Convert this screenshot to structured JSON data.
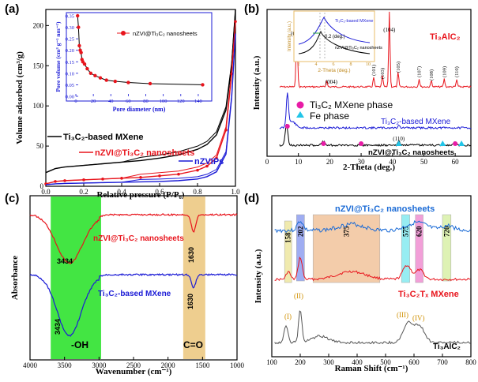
{
  "chart_data": [
    {
      "panel": "(a)",
      "type": "line",
      "xlabel": "Relative pressure (P/P₀)",
      "ylabel": "Volume adsorbed (cm³/g)",
      "xlim": [
        0,
        1.0
      ],
      "ylim": [
        0,
        220
      ],
      "xticks": [
        "0.0",
        "0.2",
        "0.4",
        "0.6",
        "0.8",
        "1.0"
      ],
      "yticks": [
        "0",
        "50",
        "100",
        "150",
        "200"
      ],
      "series": [
        {
          "name": "Ti₃C₂-based MXene",
          "color": "#000000",
          "x": [
            0,
            0.05,
            0.1,
            0.2,
            0.3,
            0.4,
            0.5,
            0.6,
            0.7,
            0.8,
            0.85,
            0.9,
            0.95,
            0.98,
            1.0
          ],
          "y": [
            17,
            22,
            24,
            26,
            28,
            30,
            32,
            35,
            39,
            46,
            52,
            64,
            95,
            150,
            220
          ]
        },
        {
          "name": "nZVI@Ti₃C₂ nanosheets",
          "color": "#e8141c",
          "x": [
            0,
            0.05,
            0.1,
            0.2,
            0.3,
            0.4,
            0.5,
            0.6,
            0.7,
            0.8,
            0.85,
            0.9,
            0.95,
            0.98,
            1.0
          ],
          "y": [
            3,
            6,
            7,
            8,
            9,
            10,
            11,
            13,
            15,
            20,
            25,
            35,
            70,
            140,
            205
          ]
        },
        {
          "name": "nZVIPs",
          "color": "#1b1bd6",
          "x": [
            0,
            0.05,
            0.1,
            0.2,
            0.3,
            0.4,
            0.5,
            0.6,
            0.7,
            0.8,
            0.85,
            0.9,
            0.95,
            0.98,
            1.0
          ],
          "y": [
            2,
            3,
            3.5,
            4,
            4.5,
            5,
            5.5,
            6,
            7,
            9,
            12,
            18,
            40,
            110,
            190
          ]
        }
      ],
      "inset": {
        "type": "line",
        "xlabel": "Pore diameter (nm)",
        "ylabel": "Pore volume (cm³ g⁻¹ nm⁻¹)",
        "xlim": [
          0,
          150
        ],
        "ylim": [
          0,
          0.35
        ],
        "xticks": [
          "0",
          "20",
          "40",
          "60",
          "80",
          "100",
          "120",
          "140"
        ],
        "yticks": [
          "0.00",
          "0.05",
          "0.10",
          "0.15",
          "0.20",
          "0.25",
          "0.30",
          "0.35"
        ],
        "legend": "nZVI@Ti₃C₂ nanosheets",
        "x": [
          2,
          3,
          4,
          5,
          6,
          7,
          8,
          10,
          13,
          17,
          22,
          28,
          35,
          45,
          60,
          85,
          145
        ],
        "y": [
          0.36,
          0.3,
          0.22,
          0.2,
          0.19,
          0.16,
          0.15,
          0.14,
          0.12,
          0.1,
          0.09,
          0.08,
          0.07,
          0.065,
          0.06,
          0.055,
          0.05
        ]
      }
    },
    {
      "panel": "(b)",
      "type": "line",
      "xlabel": "2-Theta (deg.)",
      "ylabel": "Intensity (a.u.)",
      "xlim": [
        0,
        65
      ],
      "xticks": [
        "0",
        "10",
        "20",
        "30",
        "40",
        "50",
        "60"
      ],
      "series": [
        {
          "name": "Ti₃AlC₂",
          "color": "#e8141c"
        },
        {
          "name": "Ti₃C₂-based MXene",
          "color": "#1b1bd6"
        },
        {
          "name": "nZVI@Ti₃C₂ nanosheets",
          "color": "#000000"
        }
      ],
      "peak_labels": [
        {
          "text": "(002)",
          "x": 9.5
        },
        {
          "text": "(004)",
          "x": 19
        },
        {
          "text": "(101)",
          "x": 34
        },
        {
          "text": "(103)",
          "x": 36.8
        },
        {
          "text": "(104)",
          "x": 39
        },
        {
          "text": "(105)",
          "x": 41.8
        },
        {
          "text": "(107)",
          "x": 48.5
        },
        {
          "text": "(108)",
          "x": 52.4
        },
        {
          "text": "(109)",
          "x": 56.5
        },
        {
          "text": "(110)",
          "x": 60.5
        },
        {
          "text": "(110)",
          "x": 42
        }
      ],
      "markers": {
        "mxene_phase": {
          "label": "Ti₃C₂ MXene phase",
          "x": [
            6.5,
            18,
            30,
            60
          ]
        },
        "fe_phase": {
          "label": "Fe phase",
          "x": [
            42,
            56,
            62
          ]
        }
      },
      "inset": {
        "xlabel": "2-Theta (deg.)",
        "ylabel": "Intensity (a.u.)",
        "xticks": [
          "2",
          "4",
          "6",
          "8",
          "10"
        ],
        "legend": [
          "Ti₃C₂-based MXene",
          "nZVI@Ti₃C₂ nanosheets"
        ],
        "annotation": "0.2 (deg.)"
      }
    },
    {
      "panel": "(c)",
      "type": "line",
      "xlabel": "Wavenumber (cm⁻¹)",
      "ylabel": "Absorbance",
      "xlim": [
        4000,
        1000
      ],
      "xticks": [
        "4000",
        "3500",
        "3000",
        "2500",
        "2000",
        "1500",
        "1000"
      ],
      "series": [
        {
          "name": "nZVI@Ti₃C₂ nanosheets",
          "color": "#e8141c"
        },
        {
          "name": "Ti₃C₂-based MXene",
          "color": "#1b1bd6"
        }
      ],
      "peak_labels": [
        "3434",
        "1630",
        "3434",
        "1630"
      ],
      "bands": [
        {
          "label": "-OH",
          "from": 3700,
          "to": 2970,
          "color": "#22e022"
        },
        {
          "label": "C=O",
          "from": 1780,
          "to": 1460,
          "color": "#e8be6a"
        }
      ]
    },
    {
      "panel": "(d)",
      "type": "line",
      "xlabel": "Raman Shift (cm⁻¹)",
      "ylabel": "Intensity (a.u.)",
      "xlim": [
        100,
        800
      ],
      "xticks": [
        "100",
        "200",
        "300",
        "400",
        "500",
        "600",
        "700",
        "800"
      ],
      "series": [
        {
          "name": "nZVI@Ti₃C₂ nanosheets",
          "color": "#1b6bd6"
        },
        {
          "name": "Ti₃C₂Tₓ MXene",
          "color": "#e8141c"
        },
        {
          "name": "Ti₃AlC₂",
          "color": "#555555"
        }
      ],
      "bands": [
        {
          "label": "158",
          "from": 145,
          "to": 170,
          "color": "#eee7a0"
        },
        {
          "label": "202",
          "from": 187,
          "to": 215,
          "color": "#8f9ff0"
        },
        {
          "label": "375",
          "from": 245,
          "to": 480,
          "color": "#f2c49c"
        },
        {
          "label": "575",
          "from": 556,
          "to": 585,
          "color": "#86eaf0"
        },
        {
          "label": "620",
          "from": 605,
          "to": 632,
          "color": "#f08fd2"
        },
        {
          "label": "720",
          "from": 700,
          "to": 730,
          "color": "#d9f0a8"
        }
      ],
      "mode_labels": [
        "(I)",
        "(II)",
        "(III)",
        "(IV)"
      ]
    }
  ]
}
